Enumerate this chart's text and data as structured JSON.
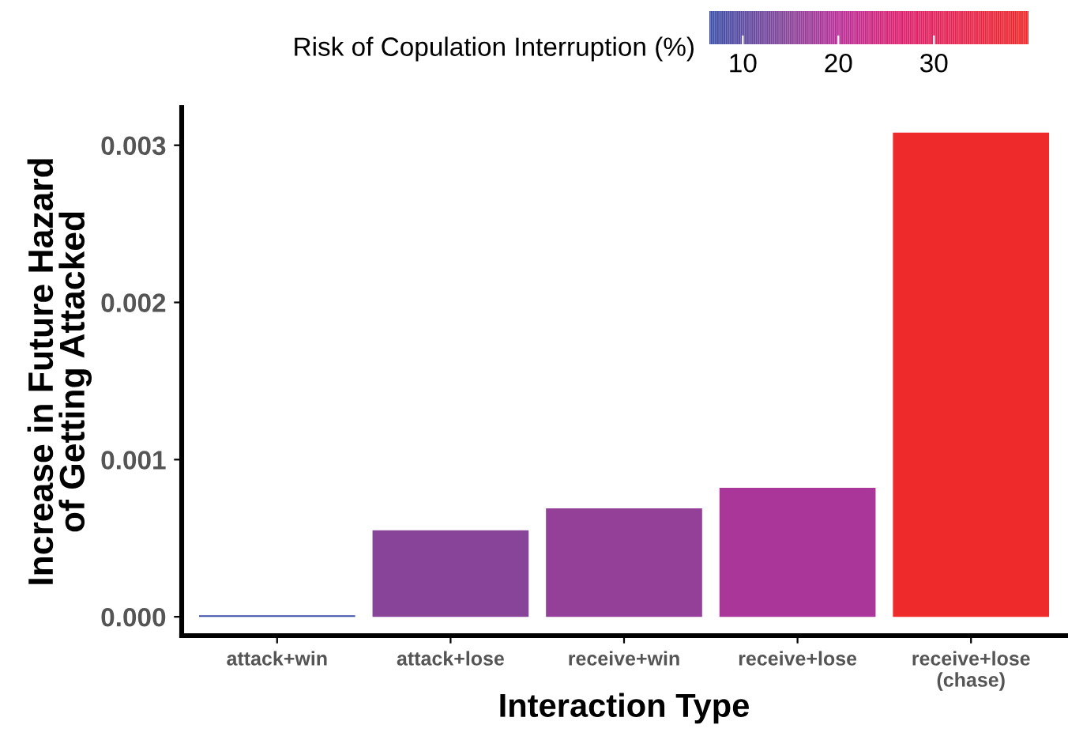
{
  "chart_data": {
    "type": "bar",
    "xlabel": "Interaction Type",
    "ylabel": "Increase in Future Hazard\nof Getting Attacked",
    "clabel": "Risk of Copulation Interruption (%)",
    "categories": [
      "attack+win",
      "attack+lose",
      "receive+win",
      "receive+lose",
      "receive+lose\n(chase)"
    ],
    "values": [
      1e-05,
      0.00055,
      0.00069,
      0.00082,
      0.00308
    ],
    "cvalues": [
      6.5,
      14.5,
      16,
      18.5,
      39.9
    ],
    "clim": [
      6.5,
      39.9
    ],
    "cticks": [
      10,
      20,
      30
    ],
    "ylim": [
      -0.00012,
      0.00324
    ],
    "yticks": [
      {
        "value": 0,
        "label": "0.000"
      },
      {
        "value": 0.001,
        "label": "0.001"
      },
      {
        "value": 0.002,
        "label": "0.002"
      },
      {
        "value": 0.003,
        "label": "0.003"
      }
    ],
    "grid": false,
    "legend": false
  }
}
